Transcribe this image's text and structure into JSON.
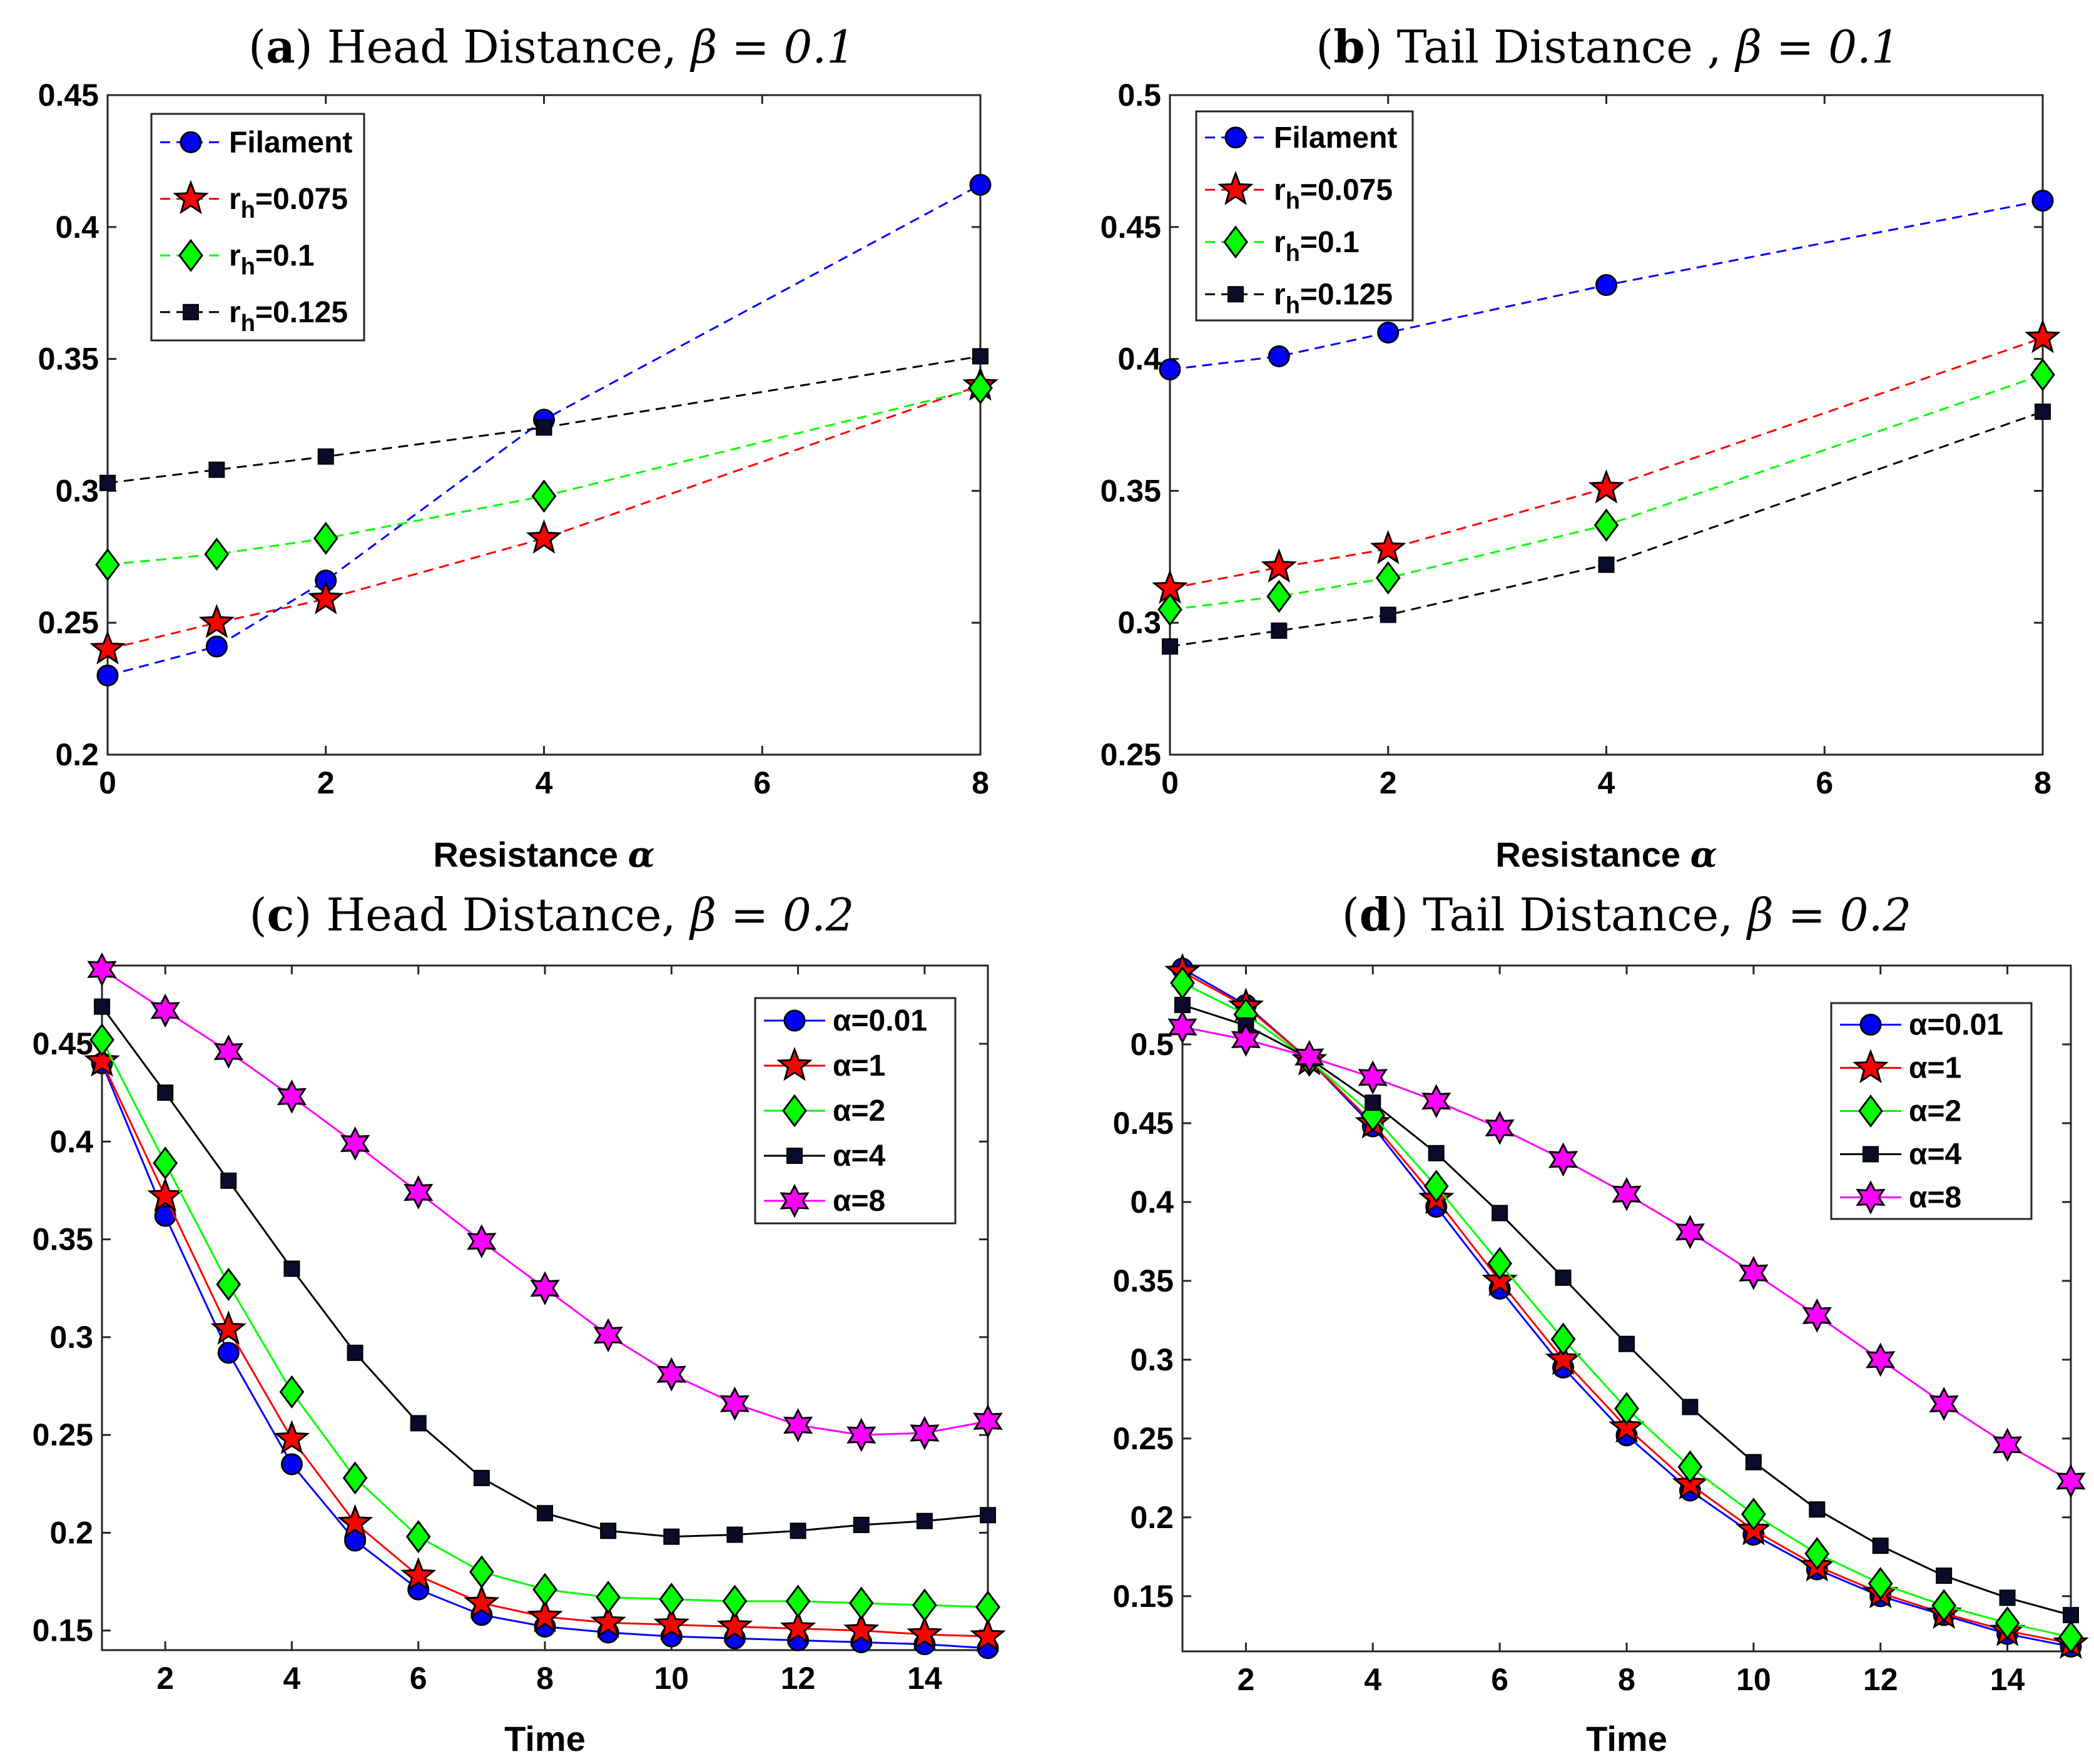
{
  "figure_label": "Four-panel figure: head and tail distance",
  "styles": {
    "Filament": {
      "color": "#0000ff",
      "marker": "circle",
      "line": "dash"
    },
    "r_h=0.075": {
      "color": "#ff0000",
      "marker": "star5",
      "line": "dash"
    },
    "r_h=0.1": {
      "color": "#00ff00",
      "marker": "diamond",
      "line": "dash"
    },
    "r_h=0.125": {
      "color": "#000000",
      "marker": "square",
      "line": "dash"
    },
    "α=0.01": {
      "color": "#0000ff",
      "marker": "circle",
      "line": "solid"
    },
    "α=1": {
      "color": "#ff0000",
      "marker": "star5",
      "line": "solid"
    },
    "α=2": {
      "color": "#00ff00",
      "marker": "diamond",
      "line": "solid"
    },
    "α=4": {
      "color": "#000000",
      "marker": "square",
      "line": "solid"
    },
    "α=8": {
      "color": "#ff00ff",
      "marker": "star6",
      "line": "solid"
    }
  },
  "chart_data": [
    {
      "id": "a",
      "type": "line",
      "title_letter": "a",
      "title_text": " Head Distance,",
      "title_beta": "β = 0.1",
      "xlabel": "Resistance α",
      "ylabel": "",
      "xlim": [
        0,
        8
      ],
      "ylim": [
        0.2,
        0.45
      ],
      "xticks": [
        0,
        2,
        4,
        6,
        8
      ],
      "yticks": [
        0.2,
        0.25,
        0.3,
        0.35,
        0.4,
        0.45
      ],
      "ytick_labels": [
        "0.2",
        "0.25",
        "0.3",
        "0.35",
        "0.4",
        "0.45"
      ],
      "legend_position": "top-left",
      "x": [
        0,
        1,
        2,
        4,
        8
      ],
      "series": [
        {
          "name": "Filament",
          "label_main": "Filament",
          "label_sub": "",
          "values": [
            0.23,
            0.241,
            0.266,
            0.327,
            0.416
          ]
        },
        {
          "name": "r_h=0.075",
          "label_main": "r",
          "label_sub": "h",
          "label_tail": "=0.075",
          "values": [
            0.24,
            0.25,
            0.259,
            0.282,
            0.34
          ]
        },
        {
          "name": "r_h=0.1",
          "label_main": "r",
          "label_sub": "h",
          "label_tail": "=0.1",
          "values": [
            0.272,
            0.276,
            0.282,
            0.298,
            0.339
          ]
        },
        {
          "name": "r_h=0.125",
          "label_main": "r",
          "label_sub": "h",
          "label_tail": "=0.125",
          "values": [
            0.303,
            0.308,
            0.313,
            0.324,
            0.351
          ]
        }
      ]
    },
    {
      "id": "b",
      "type": "line",
      "title_letter": "b",
      "title_text": " Tail Distance ,",
      "title_beta": "β = 0.1",
      "xlabel": "Resistance α",
      "ylabel": "",
      "xlim": [
        0,
        8
      ],
      "ylim": [
        0.25,
        0.5
      ],
      "xticks": [
        0,
        2,
        4,
        6,
        8
      ],
      "yticks": [
        0.25,
        0.3,
        0.35,
        0.4,
        0.45,
        0.5
      ],
      "ytick_labels": [
        "0.25",
        "0.3",
        "0.35",
        "0.4",
        "0.45",
        "0.5"
      ],
      "legend_position": "top-left",
      "x": [
        0,
        1,
        2,
        4,
        8
      ],
      "series": [
        {
          "name": "Filament",
          "label_main": "Filament",
          "label_sub": "",
          "values": [
            0.396,
            0.401,
            0.41,
            0.428,
            0.46
          ]
        },
        {
          "name": "r_h=0.075",
          "label_main": "r",
          "label_sub": "h",
          "label_tail": "=0.075",
          "values": [
            0.313,
            0.321,
            0.328,
            0.351,
            0.408
          ]
        },
        {
          "name": "r_h=0.1",
          "label_main": "r",
          "label_sub": "h",
          "label_tail": "=0.1",
          "values": [
            0.305,
            0.31,
            0.317,
            0.337,
            0.394
          ]
        },
        {
          "name": "r_h=0.125",
          "label_main": "r",
          "label_sub": "h",
          "label_tail": "=0.125",
          "values": [
            0.291,
            0.297,
            0.303,
            0.322,
            0.38
          ]
        }
      ]
    },
    {
      "id": "c",
      "type": "line",
      "title_letter": "c",
      "title_text": " Head Distance,",
      "title_beta": "β = 0.2",
      "xlabel": "Time",
      "ylabel": "",
      "xlim": [
        1,
        15
      ],
      "ylim": [
        0.14,
        0.49
      ],
      "xticks": [
        2,
        4,
        6,
        8,
        10,
        12,
        14
      ],
      "yticks": [
        0.15,
        0.2,
        0.25,
        0.3,
        0.35,
        0.4,
        0.45
      ],
      "ytick_labels": [
        "0.15",
        "0.2",
        "0.25",
        "0.3",
        "0.35",
        "0.4",
        "0.45"
      ],
      "legend_position": "top-right",
      "x": [
        1,
        2,
        3,
        4,
        5,
        6,
        7,
        8,
        9,
        10,
        11,
        12,
        13,
        14,
        15
      ],
      "series": [
        {
          "name": "α=0.01",
          "label_main": "α=0.01",
          "label_sub": "",
          "values": [
            0.44,
            0.362,
            0.292,
            0.235,
            0.196,
            0.171,
            0.158,
            0.152,
            0.149,
            0.147,
            0.146,
            0.145,
            0.144,
            0.143,
            0.141
          ]
        },
        {
          "name": "α=1",
          "label_main": "α=1",
          "label_sub": "",
          "values": [
            0.441,
            0.372,
            0.304,
            0.248,
            0.205,
            0.178,
            0.164,
            0.157,
            0.154,
            0.153,
            0.152,
            0.151,
            0.15,
            0.148,
            0.147
          ]
        },
        {
          "name": "α=2",
          "label_main": "α=2",
          "label_sub": "",
          "values": [
            0.452,
            0.389,
            0.327,
            0.272,
            0.228,
            0.198,
            0.18,
            0.171,
            0.167,
            0.166,
            0.165,
            0.165,
            0.164,
            0.163,
            0.162
          ]
        },
        {
          "name": "α=4",
          "label_main": "α=4",
          "label_sub": "",
          "values": [
            0.469,
            0.425,
            0.38,
            0.335,
            0.292,
            0.256,
            0.228,
            0.21,
            0.201,
            0.198,
            0.199,
            0.201,
            0.204,
            0.206,
            0.209
          ]
        },
        {
          "name": "α=8",
          "label_main": "α=8",
          "label_sub": "",
          "values": [
            0.488,
            0.467,
            0.446,
            0.423,
            0.399,
            0.374,
            0.349,
            0.325,
            0.301,
            0.281,
            0.266,
            0.255,
            0.25,
            0.251,
            0.257
          ]
        }
      ]
    },
    {
      "id": "d",
      "type": "line",
      "title_letter": "d",
      "title_text": " Tail Distance,",
      "title_beta": "β = 0.2",
      "xlabel": "Time",
      "ylabel": "",
      "xlim": [
        1,
        15
      ],
      "ylim": [
        0.115,
        0.55
      ],
      "xticks": [
        2,
        4,
        6,
        8,
        10,
        12,
        14
      ],
      "yticks": [
        0.15,
        0.2,
        0.25,
        0.3,
        0.35,
        0.4,
        0.45,
        0.5
      ],
      "ytick_labels": [
        "0.15",
        "0.2",
        "0.25",
        "0.3",
        "0.35",
        "0.4",
        "0.45",
        "0.5"
      ],
      "legend_position": "top-right",
      "x": [
        1,
        2,
        3,
        4,
        5,
        6,
        7,
        8,
        9,
        10,
        11,
        12,
        13,
        14,
        15
      ],
      "series": [
        {
          "name": "α=0.01",
          "label_main": "α=0.01",
          "label_sub": "",
          "values": [
            0.548,
            0.525,
            0.49,
            0.448,
            0.397,
            0.345,
            0.295,
            0.252,
            0.217,
            0.189,
            0.167,
            0.15,
            0.138,
            0.126,
            0.118
          ]
        },
        {
          "name": "α=1",
          "label_main": "α=1",
          "label_sub": "",
          "values": [
            0.546,
            0.524,
            0.49,
            0.45,
            0.402,
            0.35,
            0.3,
            0.257,
            0.221,
            0.192,
            0.169,
            0.152,
            0.139,
            0.128,
            0.12
          ]
        },
        {
          "name": "α=2",
          "label_main": "α=2",
          "label_sub": "",
          "values": [
            0.539,
            0.519,
            0.49,
            0.455,
            0.41,
            0.361,
            0.313,
            0.269,
            0.232,
            0.202,
            0.177,
            0.158,
            0.144,
            0.133,
            0.124
          ]
        },
        {
          "name": "α=4",
          "label_main": "α=4",
          "label_sub": "",
          "values": [
            0.525,
            0.512,
            0.491,
            0.463,
            0.431,
            0.393,
            0.352,
            0.31,
            0.27,
            0.235,
            0.205,
            0.182,
            0.163,
            0.149,
            0.138
          ]
        },
        {
          "name": "α=8",
          "label_main": "α=8",
          "label_sub": "",
          "values": [
            0.511,
            0.503,
            0.492,
            0.479,
            0.464,
            0.447,
            0.427,
            0.405,
            0.381,
            0.355,
            0.328,
            0.3,
            0.272,
            0.246,
            0.223
          ]
        }
      ]
    }
  ]
}
